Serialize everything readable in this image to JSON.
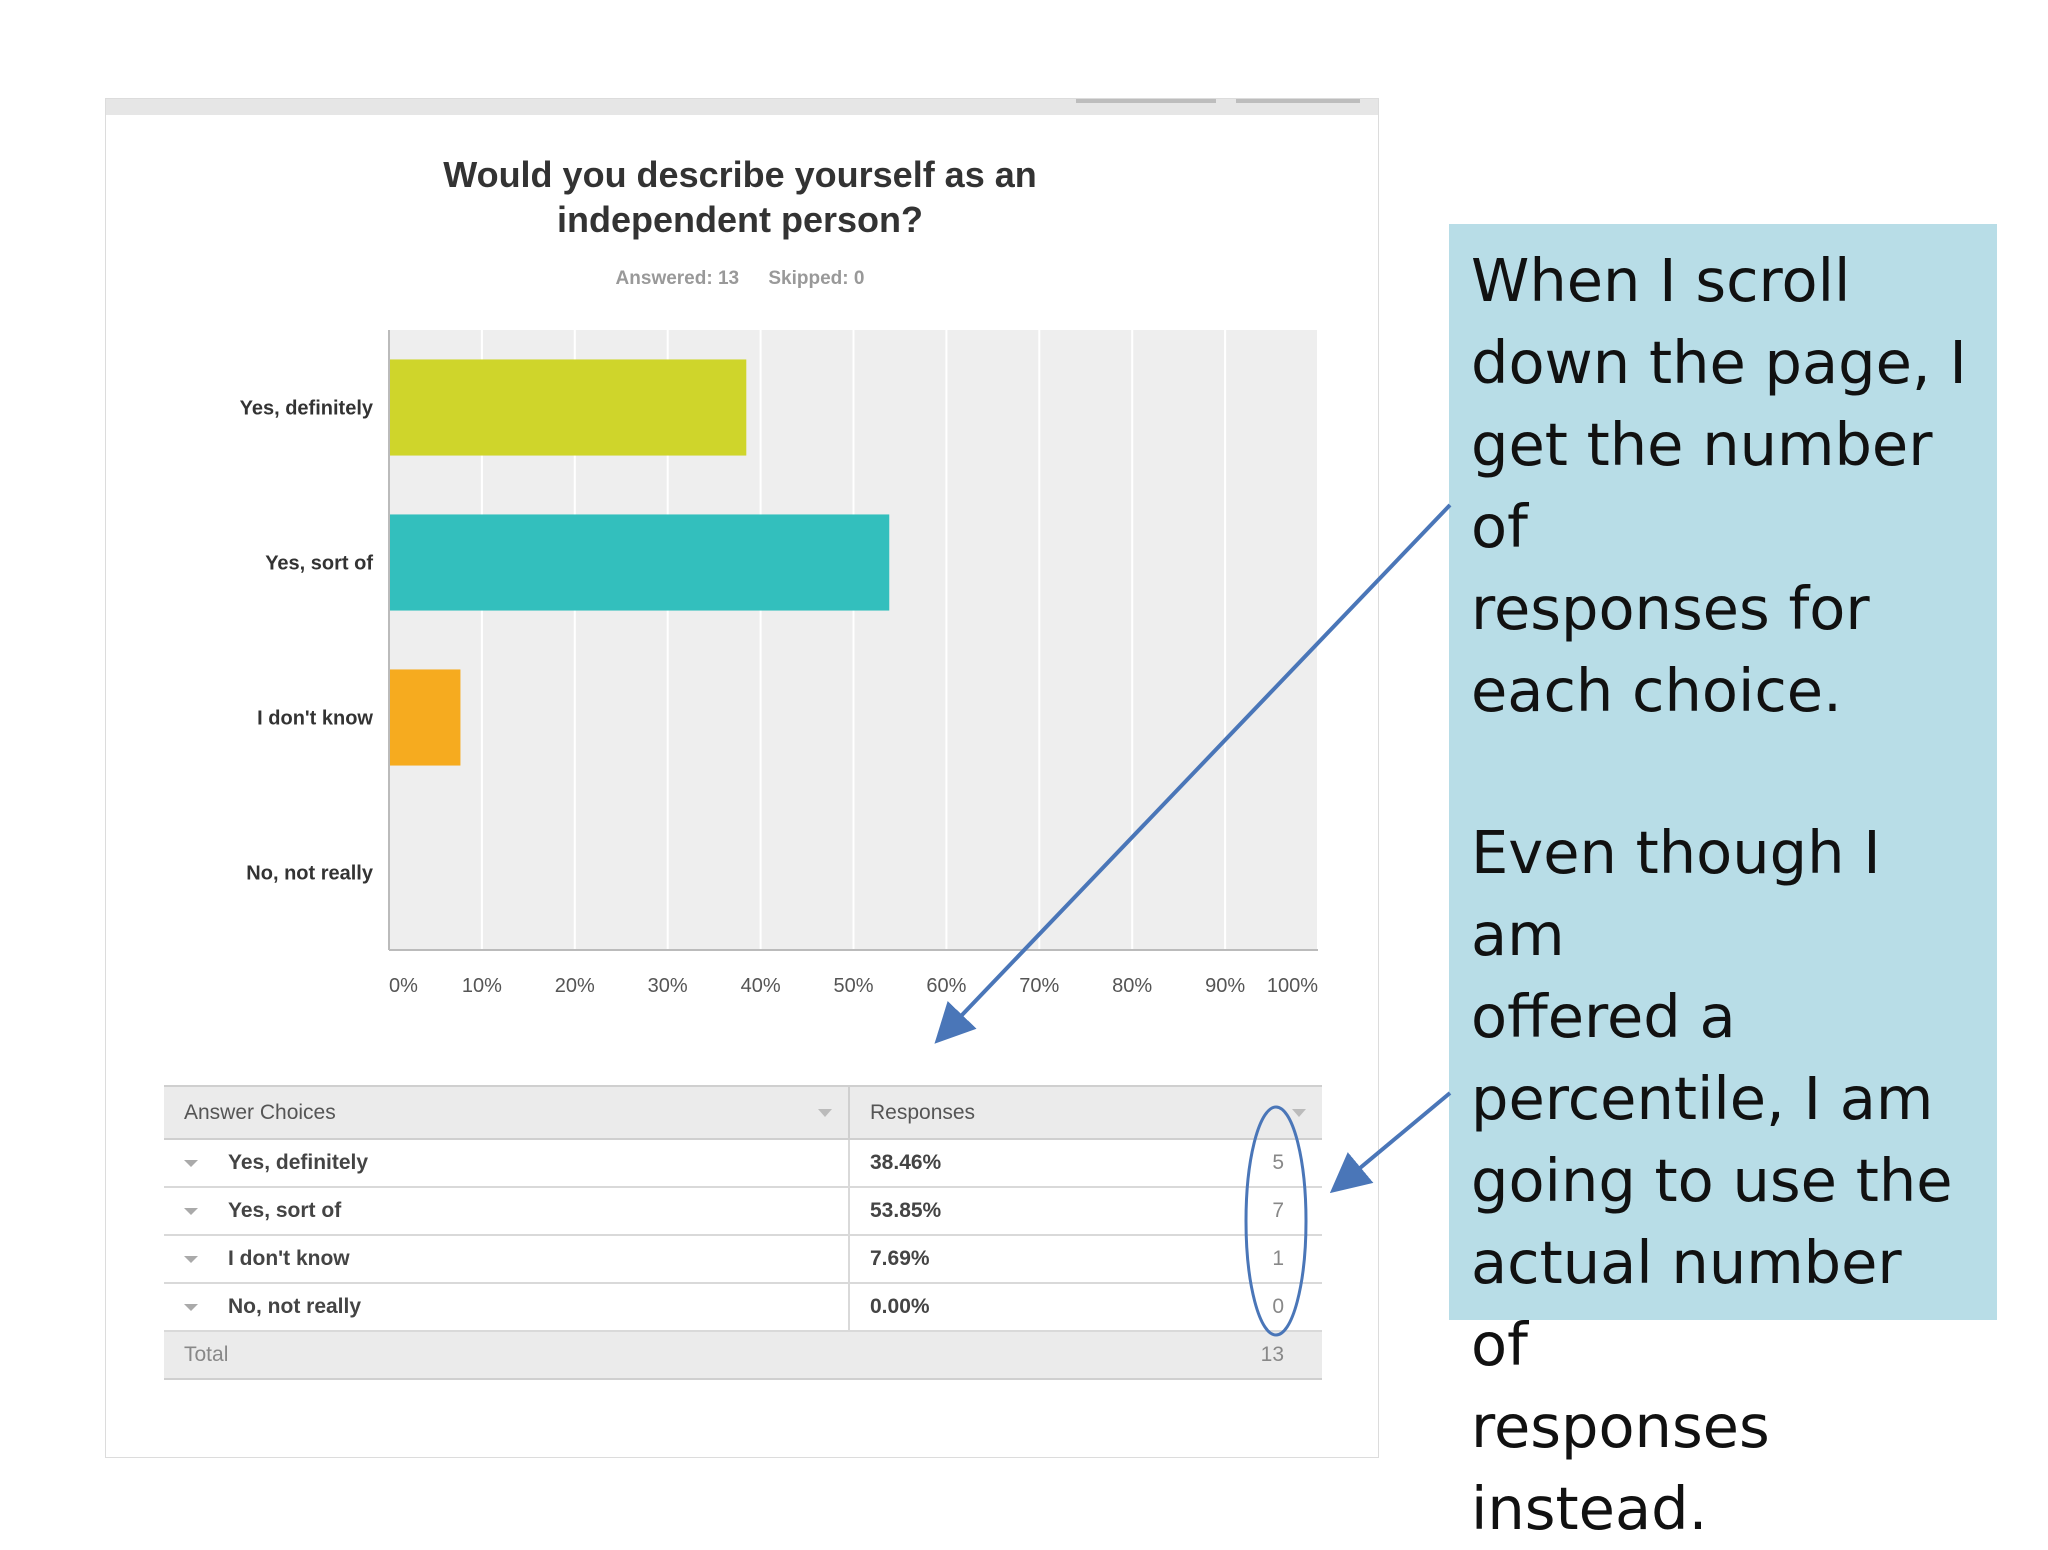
{
  "chart_data": {
    "type": "bar",
    "orientation": "horizontal",
    "title": "Would you describe yourself as an independent person?",
    "answered_label": "Answered: 13",
    "skipped_label": "Skipped: 0",
    "categories": [
      "Yes, definitely",
      "Yes, sort of",
      "I don't know",
      "No, not really"
    ],
    "values": [
      38.46,
      53.85,
      7.69,
      0
    ],
    "colors": [
      "#cfd52b",
      "#33bfbd",
      "#f6ab1f",
      "#999999"
    ],
    "xlim": [
      0,
      100
    ],
    "xticks": [
      "0%",
      "10%",
      "20%",
      "30%",
      "40%",
      "50%",
      "60%",
      "70%",
      "80%",
      "90%",
      "100%"
    ],
    "grid": true
  },
  "table": {
    "header_choices": "Answer Choices",
    "header_responses": "Responses",
    "rows": [
      {
        "choice": "Yes, definitely",
        "percent": "38.46%",
        "count": "5"
      },
      {
        "choice": "Yes, sort of",
        "percent": "53.85%",
        "count": "7"
      },
      {
        "choice": "I don't know",
        "percent": "7.69%",
        "count": "1"
      },
      {
        "choice": "No, not really",
        "percent": "0.00%",
        "count": "0"
      }
    ],
    "total_label": "Total",
    "total_count": "13"
  },
  "callout": {
    "paragraph1": "When I scroll\ndown the page, I\nget the number of\nresponses for\neach choice.",
    "paragraph2": "Even though I am\noffered a\npercentile, I am\ngoing to use the\nactual number of\nresponses\ninstead."
  },
  "annotation_color": "#4a76b8"
}
